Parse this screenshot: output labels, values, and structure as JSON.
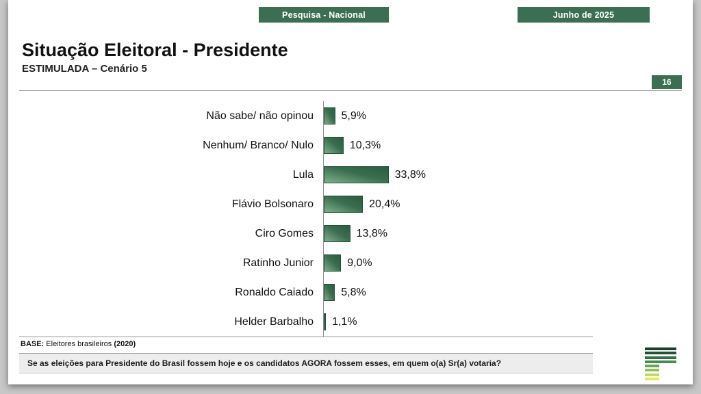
{
  "header": {
    "left_banner": "Pesquisa - Nacional",
    "right_banner": "Junho de 2025"
  },
  "title": "Situação Eleitoral - Presidente",
  "subtitle": "ESTIMULADA – Cenário 5",
  "page_number": "16",
  "chart_data": {
    "type": "bar",
    "orientation": "horizontal",
    "title": "Situação Eleitoral - Presidente (Estimulada – Cenário 5)",
    "categories": [
      "Não sabe/ não opinou",
      "Nenhum/ Branco/ Nulo",
      "Lula",
      "Flávio Bolsonaro",
      "Ciro Gomes",
      "Ratinho Junior",
      "Ronaldo Caiado",
      "Helder Barbalho"
    ],
    "values": [
      5.9,
      10.3,
      33.8,
      20.4,
      13.8,
      9.0,
      5.8,
      1.1
    ],
    "value_labels": [
      "5,9%",
      "10,3%",
      "33,8%",
      "20,4%",
      "13,8%",
      "9,0%",
      "5,8%",
      "1,1%"
    ],
    "xlim": [
      0,
      40
    ],
    "grid": false,
    "legend": false,
    "bar_color_dark": "#2d5c41",
    "bar_color_light": "#7fb08c",
    "accent_color": "#3c6e54"
  },
  "footer": {
    "base_label": "BASE:",
    "base_text": " Eleitores brasileiros ",
    "base_bold": "(2020)",
    "question": "Se as eleições para Presidente do Brasil fossem hoje e os candidatos AGORA fossem esses, em quem o(a) Sr(a) votaria?"
  },
  "logo_name": "parana-pesquisas-stripes-logo"
}
